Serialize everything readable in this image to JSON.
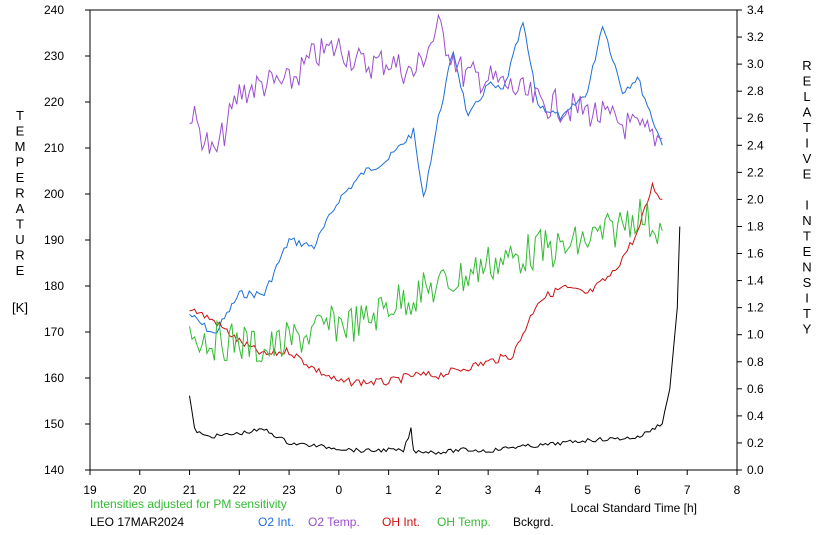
{
  "chart_data": {
    "type": "line",
    "left_axis": {
      "label_letters": [
        "T",
        "E",
        "M",
        "P",
        "E",
        "R",
        "A",
        "T",
        "U",
        "R",
        "E"
      ],
      "unit": "[K]",
      "range": [
        140,
        240
      ],
      "ticks": [
        "140",
        "150",
        "160",
        "170",
        "180",
        "190",
        "200",
        "210",
        "220",
        "230",
        "240"
      ]
    },
    "right_axis": {
      "label_letters": [
        "R",
        "E",
        "L",
        "A",
        "T",
        "I",
        "V",
        "E",
        "",
        "I",
        "N",
        "T",
        "E",
        "N",
        "S",
        "I",
        "T",
        "Y"
      ],
      "range": [
        0.0,
        3.4
      ],
      "ticks": [
        "0.0",
        "0.2",
        "0.4",
        "0.6",
        "0.8",
        "1.0",
        "1.2",
        "1.4",
        "1.6",
        "1.8",
        "2.0",
        "2.2",
        "2.4",
        "2.6",
        "2.8",
        "3.0",
        "3.2",
        "3.4"
      ]
    },
    "x_axis": {
      "label": "Local Standard Time [h]",
      "ticks": [
        "19",
        "20",
        "21",
        "22",
        "23",
        "0",
        "1",
        "2",
        "3",
        "4",
        "5",
        "6",
        "7",
        "8"
      ]
    },
    "note": "Intensities adjusted for PM sensitivity",
    "station": "LEO 17MAR2024",
    "series": [
      {
        "name": "O2 Int.",
        "color": "#1f6fd8",
        "axis": "right",
        "x": [
          21.0,
          21.5,
          22.0,
          22.5,
          23.0,
          23.5,
          0.0,
          0.5,
          1.0,
          1.5,
          1.7,
          2.0,
          2.3,
          2.6,
          3.0,
          3.3,
          3.7,
          4.0,
          4.5,
          5.0,
          5.3,
          5.7,
          6.0,
          6.5
        ],
        "values": [
          1.15,
          1.0,
          1.3,
          1.3,
          1.7,
          1.65,
          2.0,
          2.2,
          2.3,
          2.5,
          2.0,
          2.6,
          3.1,
          2.6,
          2.85,
          2.8,
          3.3,
          2.7,
          2.6,
          2.8,
          3.3,
          2.8,
          2.9,
          2.4
        ]
      },
      {
        "name": "O2 Temp.",
        "color": "#9b4fd0",
        "axis": "left",
        "x": [
          21.0,
          21.3,
          21.5,
          22.0,
          22.5,
          23.0,
          23.5,
          0.0,
          0.5,
          1.0,
          1.5,
          2.0,
          2.5,
          3.0,
          3.5,
          4.0,
          4.5,
          5.0,
          5.5,
          6.0,
          6.5
        ],
        "values": [
          218,
          212,
          208,
          222,
          224,
          224,
          230,
          232,
          228,
          229,
          226,
          236,
          226,
          225,
          223,
          220,
          219,
          218,
          216,
          214,
          212
        ]
      },
      {
        "name": "OH Int.",
        "color": "#cc1010",
        "axis": "right",
        "x": [
          21.0,
          21.5,
          22.0,
          22.5,
          23.0,
          23.5,
          0.0,
          0.5,
          1.0,
          1.5,
          2.0,
          2.5,
          3.0,
          3.5,
          4.0,
          4.5,
          5.0,
          5.5,
          6.0,
          6.3,
          6.5
        ],
        "values": [
          1.2,
          1.1,
          0.95,
          0.85,
          0.88,
          0.75,
          0.65,
          0.65,
          0.65,
          0.7,
          0.7,
          0.75,
          0.8,
          0.85,
          1.25,
          1.35,
          1.3,
          1.45,
          1.75,
          2.1,
          2.0
        ]
      },
      {
        "name": "OH Temp.",
        "color": "#33bb33",
        "axis": "left",
        "x": [
          21.0,
          21.5,
          22.0,
          22.5,
          23.0,
          23.5,
          0.0,
          0.5,
          1.0,
          1.5,
          2.0,
          2.5,
          3.0,
          3.5,
          4.0,
          4.5,
          5.0,
          5.5,
          6.0,
          6.5
        ],
        "values": [
          170,
          168,
          168,
          166,
          168,
          170,
          172,
          172,
          176,
          178,
          180,
          182,
          185,
          186,
          188,
          188,
          190,
          192,
          196,
          192
        ]
      },
      {
        "name": "Bckgrd.",
        "color": "#000000",
        "axis": "right",
        "x": [
          21.0,
          21.1,
          21.3,
          21.5,
          22.0,
          22.5,
          23.0,
          23.5,
          0.0,
          0.5,
          1.0,
          1.3,
          1.45,
          1.5,
          1.6,
          2.0,
          2.5,
          3.0,
          3.5,
          4.0,
          4.5,
          5.0,
          5.5,
          6.0,
          6.3,
          6.5,
          6.65,
          6.8,
          6.85
        ],
        "values": [
          0.55,
          0.3,
          0.25,
          0.25,
          0.27,
          0.3,
          0.2,
          0.18,
          0.16,
          0.14,
          0.15,
          0.14,
          0.3,
          0.14,
          0.14,
          0.13,
          0.15,
          0.14,
          0.17,
          0.18,
          0.2,
          0.22,
          0.23,
          0.24,
          0.3,
          0.35,
          0.6,
          1.2,
          1.8
        ]
      }
    ]
  }
}
